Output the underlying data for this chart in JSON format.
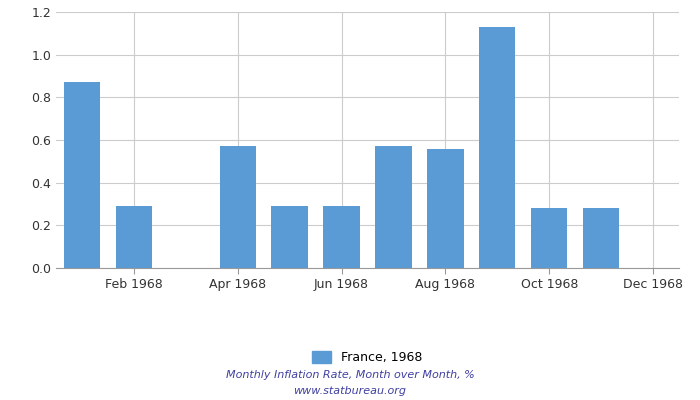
{
  "month_labels": [
    "Feb 1968",
    "Apr 1968",
    "Jun 1968",
    "Aug 1968",
    "Oct 1968",
    "Dec 1968"
  ],
  "tick_positions": [
    1.5,
    3.5,
    5.5,
    7.5,
    9.5,
    11.5
  ],
  "values": [
    0.87,
    0.29,
    0.0,
    0.57,
    0.29,
    0.29,
    0.57,
    0.56,
    1.13,
    0.28,
    0.28,
    0.0
  ],
  "bar_color": "#5b9bd5",
  "ylim": [
    0,
    1.2
  ],
  "yticks": [
    0,
    0.2,
    0.4,
    0.6,
    0.8,
    1.0,
    1.2
  ],
  "legend_label": "France, 1968",
  "footer_line1": "Monthly Inflation Rate, Month over Month, %",
  "footer_line2": "www.statbureau.org",
  "footer_color": "#4040a0",
  "grid_color": "#cccccc",
  "background_color": "#ffffff"
}
